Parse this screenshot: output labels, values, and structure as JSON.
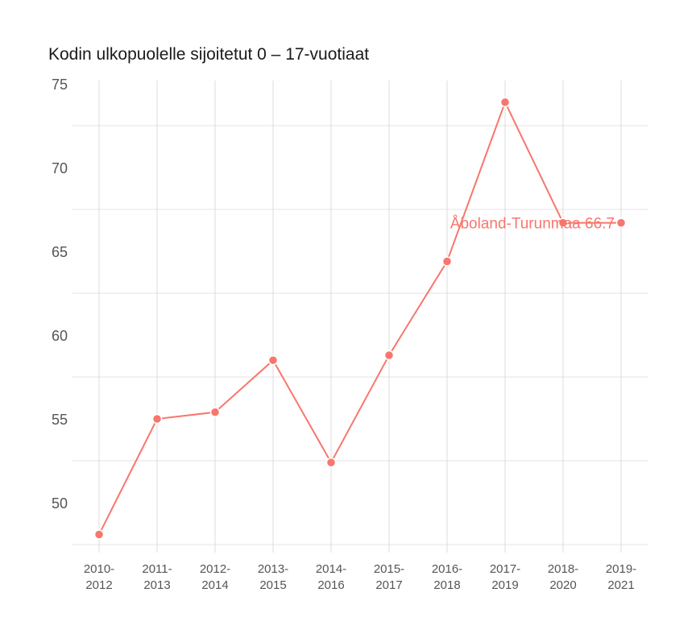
{
  "chart_data": {
    "type": "line",
    "title": "Kodin ulkopuolelle sijoitetut 0 – 17-vuotiaat",
    "xlabel": "",
    "ylabel": "",
    "categories": [
      "2010-2012",
      "2011-2013",
      "2012-2014",
      "2013-2015",
      "2014-2016",
      "2015-2017",
      "2016-2018",
      "2017-2019",
      "2018-2020",
      "2019-2021"
    ],
    "category_lines": [
      [
        "2010-",
        "2012"
      ],
      [
        "2011-",
        "2013"
      ],
      [
        "2012-",
        "2014"
      ],
      [
        "2013-",
        "2015"
      ],
      [
        "2014-",
        "2016"
      ],
      [
        "2015-",
        "2017"
      ],
      [
        "2016-",
        "2018"
      ],
      [
        "2017-",
        "2019"
      ],
      [
        "2018-",
        "2020"
      ],
      [
        "2019-",
        "2021"
      ]
    ],
    "series": [
      {
        "name": "Åboland-Turunmaa",
        "color": "#F8766D",
        "values": [
          48.1,
          55.0,
          55.4,
          58.5,
          52.4,
          58.8,
          64.4,
          73.9,
          66.7,
          66.7
        ]
      }
    ],
    "yticks": [
      50,
      55,
      60,
      65,
      70,
      75
    ],
    "ylim": [
      47.2,
      75
    ],
    "grid": true,
    "legend": "none",
    "annotations": [
      {
        "text": "Åboland-Turunmaa 66.7",
        "series": "Åboland-Turunmaa",
        "at": "2019-2021"
      }
    ]
  }
}
